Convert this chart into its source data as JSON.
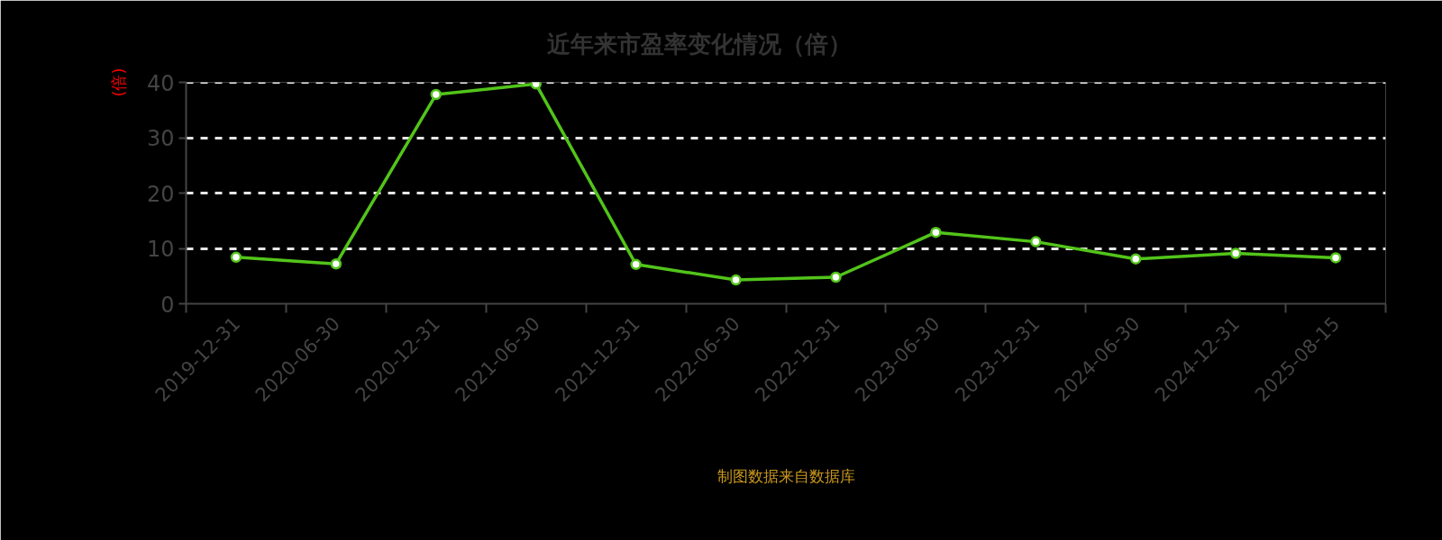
{
  "chart_data": {
    "type": "line",
    "title": "近年来市盈率变化情况（倍）",
    "ylabel": "(倍)",
    "categories": [
      "2019-12-31",
      "2020-06-30",
      "2020-12-31",
      "2021-06-30",
      "2021-12-31",
      "2022-06-30",
      "2022-12-31",
      "2023-06-30",
      "2023-12-31",
      "2024-06-30",
      "2024-12-31",
      "2025-08-15"
    ],
    "series": [
      {
        "color": "#52c41a",
        "values": [
          8.4,
          7.2,
          37.8,
          39.7,
          7.1,
          4.3,
          4.8,
          12.9,
          11.2,
          8.1,
          9.1,
          8.3
        ]
      }
    ],
    "ylim": [
      0,
      40
    ],
    "yticks": [
      0,
      10,
      20,
      30,
      40
    ],
    "grid": "y",
    "marker": "circle",
    "line_style": "solid",
    "annotations": [
      "制图数据来自数据库"
    ]
  }
}
